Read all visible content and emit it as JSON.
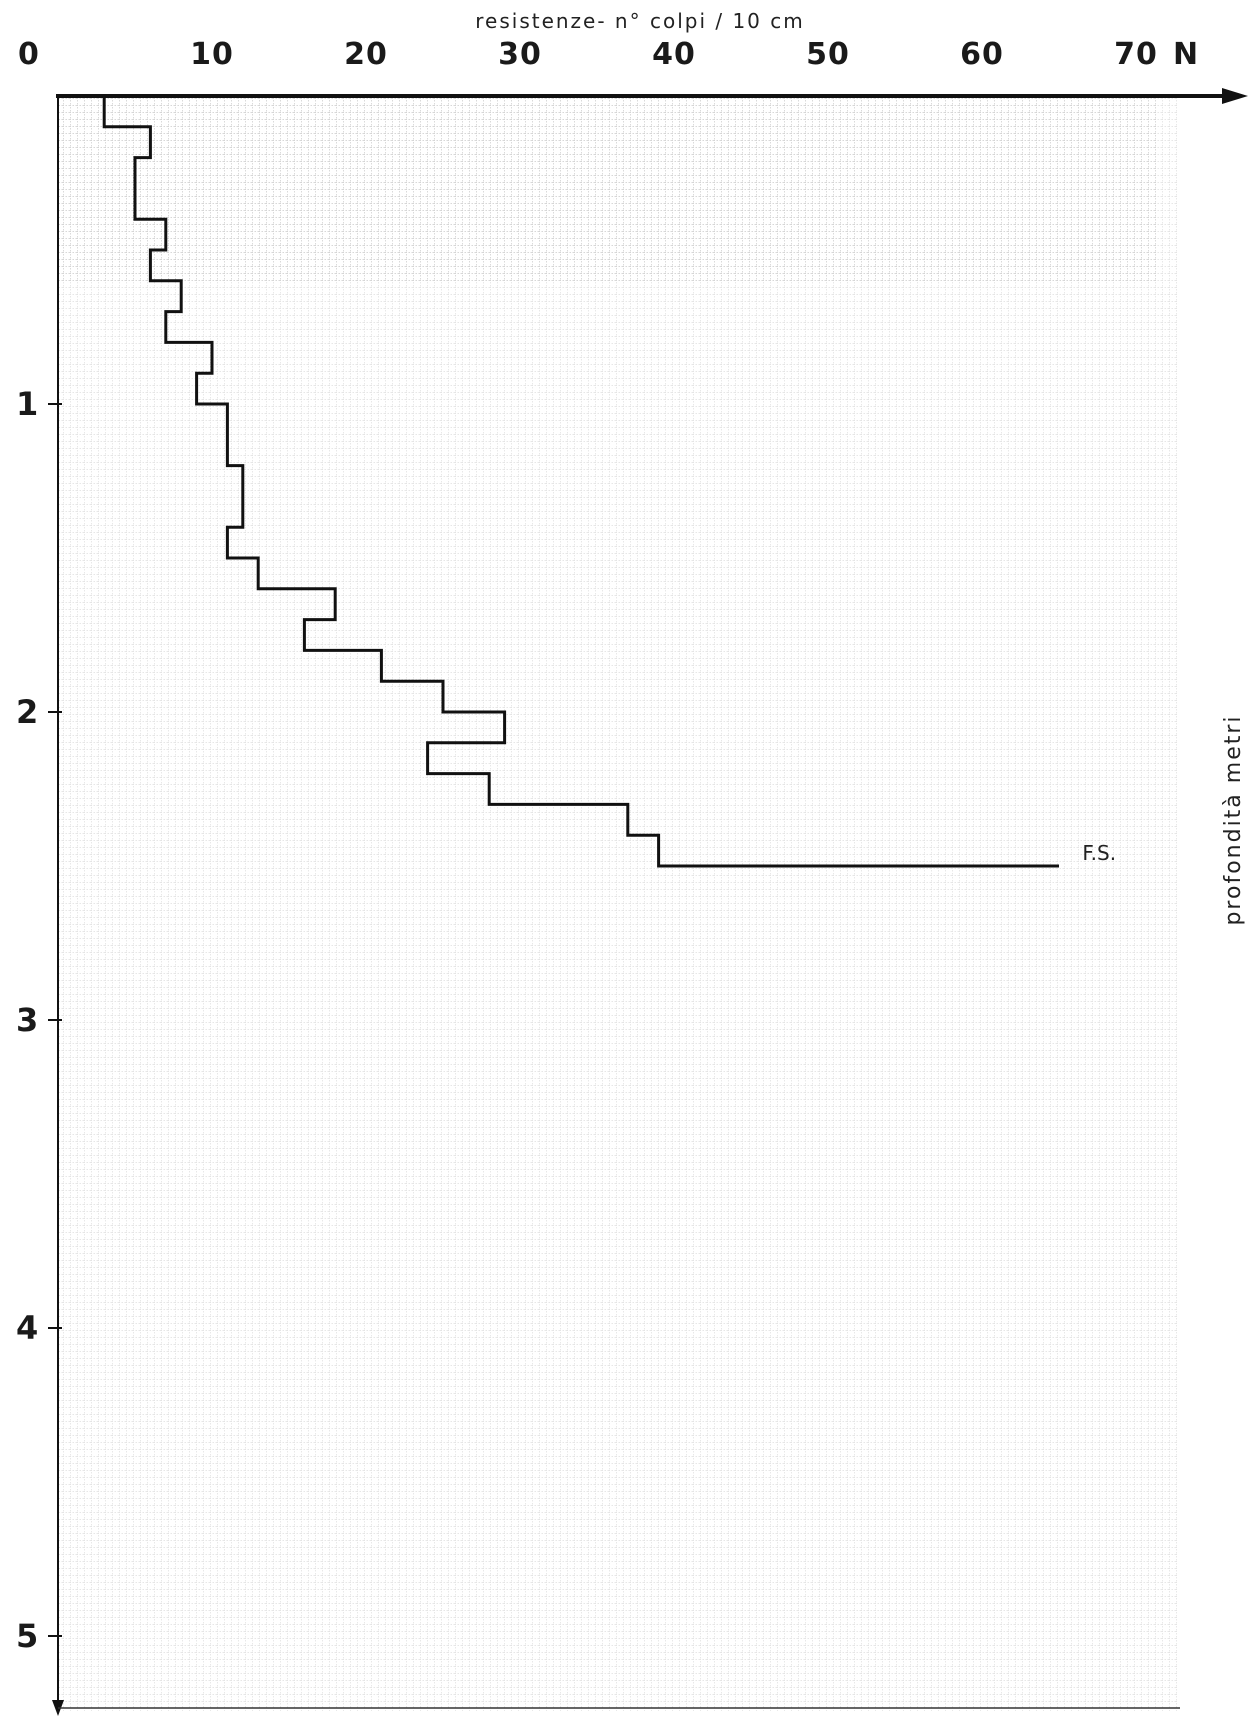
{
  "chart_data": {
    "type": "line",
    "title": "resistenze- n° colpi / 10 cm",
    "xlabel": "N",
    "ylabel": "profondità metri",
    "xlim": [
      0,
      75
    ],
    "ylim": [
      0,
      5.2
    ],
    "y_inverted": true,
    "x_ticks": [
      "0",
      "10",
      "20",
      "30",
      "40",
      "50",
      "60",
      "70"
    ],
    "y_ticks": [
      "1",
      "2",
      "3",
      "4",
      "5"
    ],
    "grid": true,
    "series": [
      {
        "style": "step",
        "depth_m": [
          0.0,
          0.1,
          0.2,
          0.3,
          0.4,
          0.5,
          0.6,
          0.7,
          0.8,
          0.9,
          1.0,
          1.1,
          1.2,
          1.3,
          1.4,
          1.5,
          1.6,
          1.7,
          1.8,
          1.9,
          2.0,
          2.1,
          2.2,
          2.3,
          2.4
        ],
        "N": [
          3,
          6,
          5,
          5,
          7,
          6,
          8,
          7,
          10,
          9,
          11,
          11,
          12,
          12,
          11,
          13,
          18,
          16,
          21,
          25,
          29,
          24,
          28,
          37,
          39
        ],
        "end_depth_m": 2.5,
        "refusal_N": 65
      }
    ],
    "annotations": [
      {
        "text": "F.S.",
        "x": 66,
        "y": 2.48
      }
    ]
  }
}
